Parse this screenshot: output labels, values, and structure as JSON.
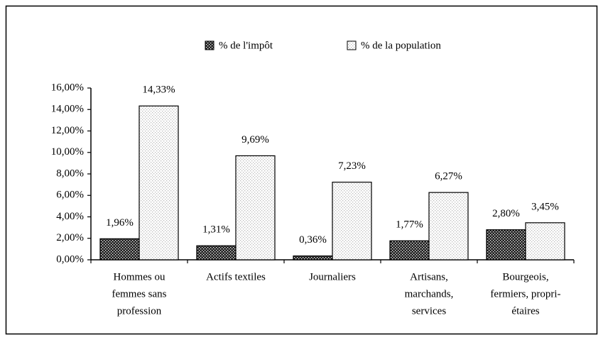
{
  "chart_data": {
    "type": "bar",
    "categories": [
      [
        "Hommes ou",
        "femmes sans",
        "profession"
      ],
      [
        "Actifs textiles"
      ],
      [
        "Journaliers"
      ],
      [
        "Artisans,",
        "marchands,",
        "services"
      ],
      [
        "Bourgeois,",
        "fermiers, propri-",
        "étaires"
      ]
    ],
    "series": [
      {
        "name": "% de l'impôt",
        "color": "#222222",
        "values": [
          1.96,
          1.31,
          0.36,
          1.77,
          2.8
        ],
        "value_labels": [
          "1,96%",
          "1,31%",
          "0,36%",
          "1,77%",
          "2,80%"
        ]
      },
      {
        "name": "% de la population",
        "color": "#bbbbbb",
        "values": [
          14.33,
          9.69,
          7.23,
          6.27,
          3.45
        ],
        "value_labels": [
          "14,33%",
          "9,69%",
          "7,23%",
          "6,27%",
          "3,45%"
        ]
      }
    ],
    "ylim": [
      0,
      16
    ],
    "yticks": [
      {
        "value": 0,
        "label": "0,00%"
      },
      {
        "value": 2,
        "label": "2,00%"
      },
      {
        "value": 4,
        "label": "4,00%"
      },
      {
        "value": 6,
        "label": "6,00%"
      },
      {
        "value": 8,
        "label": "8,00%"
      },
      {
        "value": 10,
        "label": "10,00%"
      },
      {
        "value": 12,
        "label": "12,00%"
      },
      {
        "value": 14,
        "label": "14,00%"
      },
      {
        "value": 16,
        "label": "16,00%"
      }
    ],
    "legend": "top"
  }
}
